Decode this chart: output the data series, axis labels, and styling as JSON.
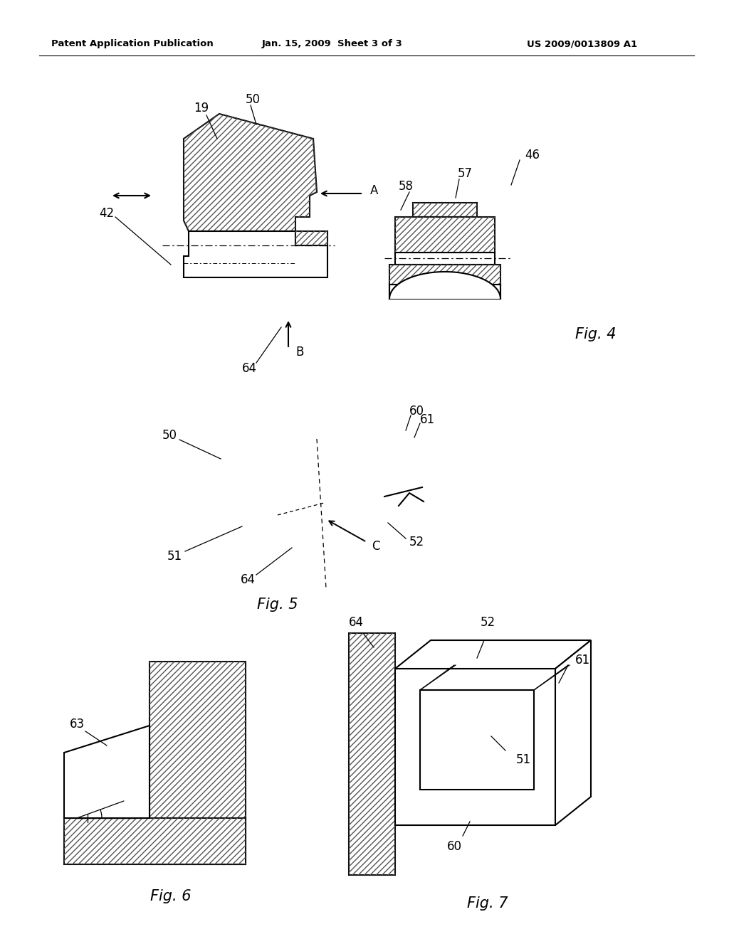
{
  "background_color": "#ffffff",
  "header_left": "Patent Application Publication",
  "header_mid": "Jan. 15, 2009  Sheet 3 of 3",
  "header_right": "US 2009/0013809 A1",
  "fig4_title": "Fig. 4",
  "fig5_title": "Fig. 5",
  "fig6_title": "Fig. 6",
  "fig7_title": "Fig. 7",
  "line_color": "#000000"
}
